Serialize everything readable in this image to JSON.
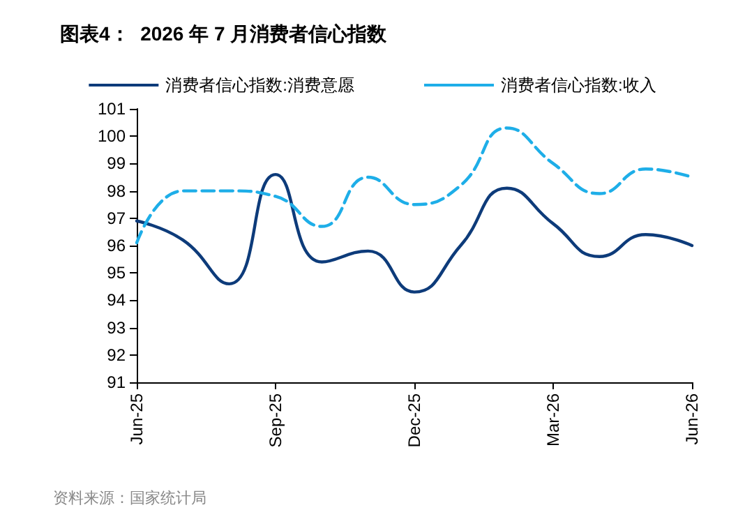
{
  "chart_data": {
    "type": "line",
    "title": "图表4：  2026 年 7 月消费者信心指数",
    "categories": [
      "Jun-25",
      null,
      null,
      "Sep-25",
      null,
      null,
      "Dec-25",
      null,
      null,
      "Mar-26",
      null,
      null,
      "Jun-26"
    ],
    "series": [
      {
        "name": "消费者信心指数:消费意愿",
        "color": "#0d3b7a",
        "line_style": "solid",
        "values": [
          96.9,
          96.2,
          94.6,
          98.6,
          95.4,
          95.8,
          94.3,
          96.0,
          98.1,
          96.8,
          95.6,
          96.4,
          96.0
        ]
      },
      {
        "name": "消费者信心指数:收入",
        "color": "#1eaee8",
        "line_style": "dashed",
        "values": [
          96.1,
          98.0,
          98.0,
          97.8,
          96.7,
          98.5,
          97.5,
          98.2,
          100.3,
          99.0,
          97.9,
          98.8,
          98.5
        ]
      }
    ],
    "ylim": [
      91,
      101
    ],
    "yticks": [
      91,
      92,
      93,
      94,
      95,
      96,
      97,
      98,
      99,
      100,
      101
    ],
    "grid": false,
    "legend": "top",
    "marker": "none",
    "annotations": [
      "资料来源：国家统计局"
    ]
  }
}
